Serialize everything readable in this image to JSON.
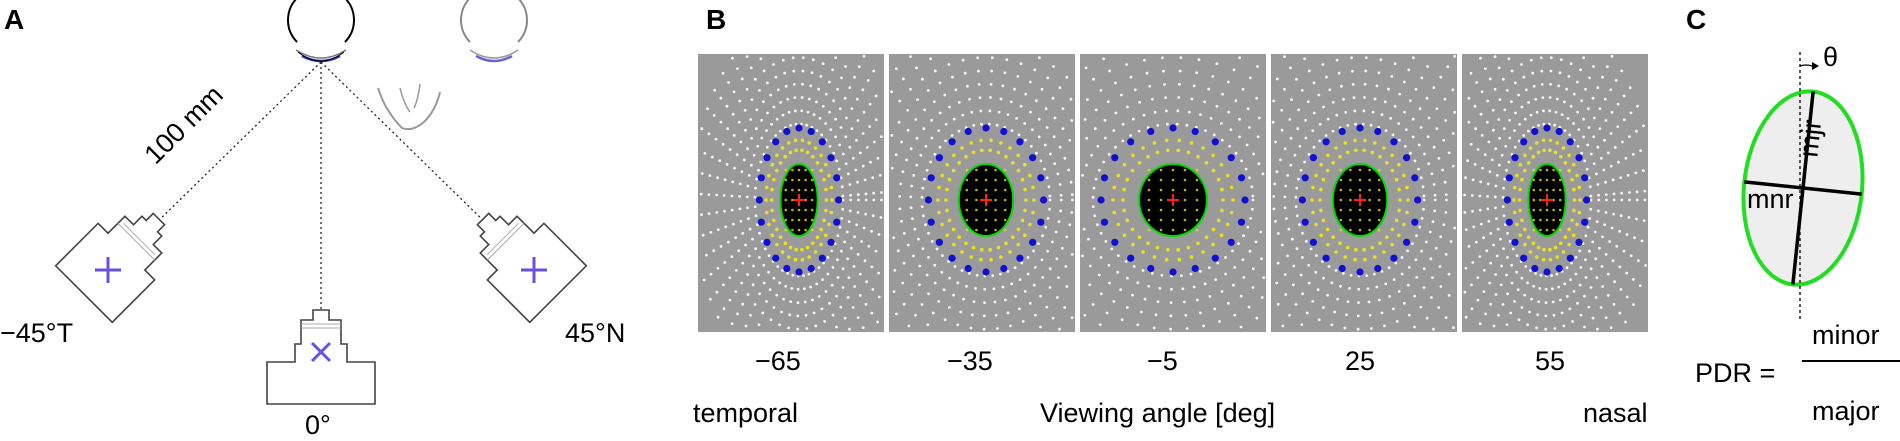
{
  "panels": {
    "a": {
      "letter": "A",
      "distance_label": "100 mm",
      "camera_labels": {
        "left": "−45°T",
        "center": "0°",
        "right": "45°N"
      }
    },
    "b": {
      "letter": "B",
      "angles": [
        "−65",
        "−35",
        "−5",
        "25",
        "55"
      ],
      "temporal_label": "temporal",
      "axis_label": "Viewing angle [deg]",
      "nasal_label": "nasal"
    },
    "c": {
      "letter": "C",
      "theta_label": "θ",
      "major_label": "mjr",
      "minor_label": "mnr",
      "pdr_label": "PDR =",
      "numerator": "minor",
      "denominator": "major"
    }
  },
  "colors": {
    "panel_bg": "#9a9a9a",
    "pupil": "#000000",
    "pupil_outline": "#00dd00",
    "blue_dots": "#1010d0",
    "yellow_dots": "#e8e020",
    "white_dots": "#ffffff",
    "center_mark": "#ff2020",
    "camera_mark": "#6a4fe0"
  },
  "icons": [
    "eye-top-view-icon",
    "camera-icon",
    "cross-marker-icon",
    "nose-icon"
  ]
}
